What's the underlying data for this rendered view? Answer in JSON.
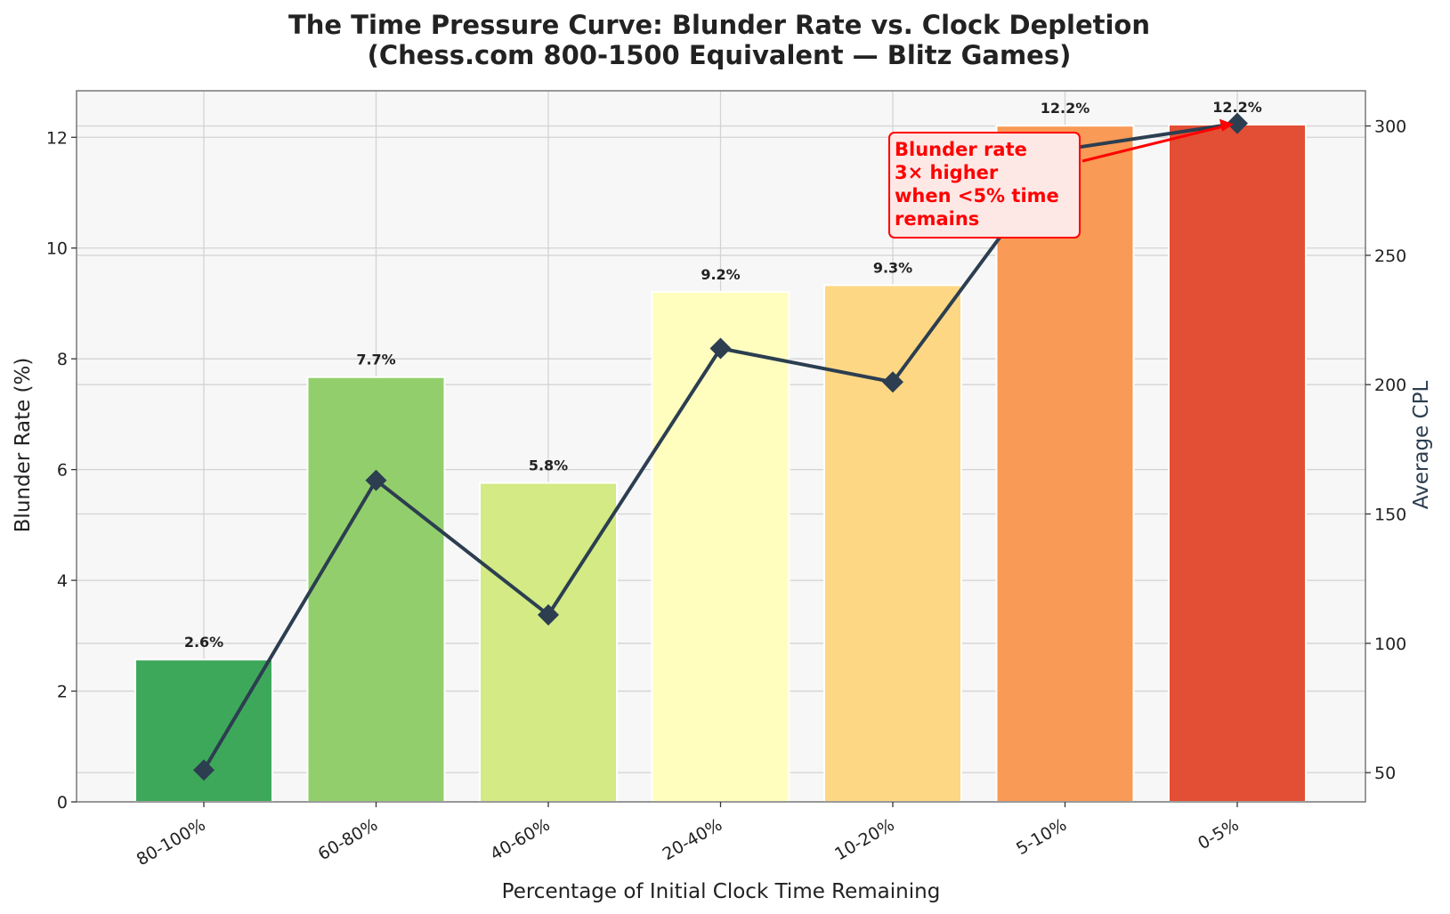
{
  "chart_data": {
    "type": "bar",
    "title_line1": "The Time Pressure Curve: Blunder Rate vs. Clock Depletion",
    "title_line2": "(Chess.com 800-1500 Equivalent — Blitz Games)",
    "xlabel": "Percentage of Initial Clock Time Remaining",
    "ylabel": "Blunder Rate (%)",
    "y2label": "Average CPL",
    "categories": [
      "80-100%",
      "60-80%",
      "40-60%",
      "20-40%",
      "10-20%",
      "5-10%",
      "0-5%"
    ],
    "series": [
      {
        "type": "bar",
        "axis": "left",
        "values": [
          2.57,
          7.67,
          5.76,
          9.21,
          9.33,
          12.21,
          12.23
        ],
        "value_labels": [
          "2.6%",
          "7.7%",
          "5.8%",
          "9.2%",
          "9.3%",
          "12.2%",
          "12.2%"
        ],
        "colors": [
          "#3ea85a",
          "#92cf6c",
          "#d3ea85",
          "#fffebf",
          "#fdd784",
          "#f99a56",
          "#e34f35"
        ]
      },
      {
        "type": "line",
        "axis": "right",
        "marker": "diamond",
        "color": "#2c3e50",
        "values": [
          51,
          163,
          111,
          214,
          201,
          291,
          301
        ]
      }
    ],
    "ylim": [
      0,
      12.84
    ],
    "y2lim": [
      38.7,
      313.6
    ],
    "yticks": [
      0,
      2,
      4,
      6,
      8,
      10,
      12
    ],
    "y2ticks": [
      50,
      100,
      150,
      200,
      250,
      300
    ],
    "grid": true,
    "annotation": {
      "lines": [
        "Blunder rate",
        "3× higher",
        "when <5% time",
        "remains"
      ],
      "color": "#ff0000",
      "points_to_category": "0-5%"
    }
  }
}
